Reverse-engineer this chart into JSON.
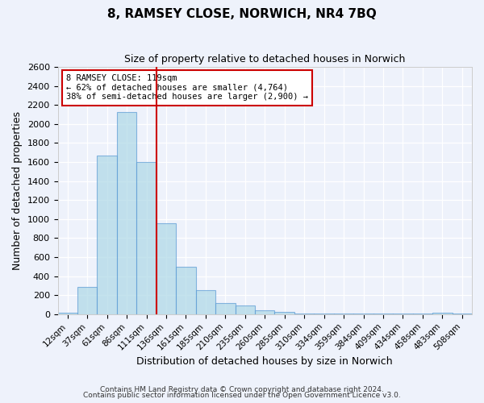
{
  "title": "8, RAMSEY CLOSE, NORWICH, NR4 7BQ",
  "subtitle": "Size of property relative to detached houses in Norwich",
  "xlabel": "Distribution of detached houses by size in Norwich",
  "ylabel": "Number of detached properties",
  "bar_labels": [
    "12sqm",
    "37sqm",
    "61sqm",
    "86sqm",
    "111sqm",
    "136sqm",
    "161sqm",
    "185sqm",
    "210sqm",
    "235sqm",
    "260sqm",
    "285sqm",
    "310sqm",
    "334sqm",
    "359sqm",
    "384sqm",
    "409sqm",
    "434sqm",
    "458sqm",
    "483sqm",
    "508sqm"
  ],
  "bar_values": [
    20,
    290,
    1670,
    2130,
    1600,
    960,
    500,
    250,
    120,
    95,
    40,
    25,
    10,
    10,
    10,
    5,
    5,
    5,
    5,
    20,
    5
  ],
  "bar_color": "#add8e6",
  "bar_edge_color": "#5b9bd5",
  "bar_alpha": 0.7,
  "vline_x": 4.5,
  "vline_color": "#cc0000",
  "annotation_title": "8 RAMSEY CLOSE: 119sqm",
  "annotation_line1": "← 62% of detached houses are smaller (4,764)",
  "annotation_line2": "38% of semi-detached houses are larger (2,900) →",
  "annotation_box_color": "#ffffff",
  "annotation_box_edge": "#cc0000",
  "ylim": [
    0,
    2600
  ],
  "yticks": [
    0,
    200,
    400,
    600,
    800,
    1000,
    1200,
    1400,
    1600,
    1800,
    2000,
    2200,
    2400,
    2600
  ],
  "footer1": "Contains HM Land Registry data © Crown copyright and database right 2024.",
  "footer2": "Contains public sector information licensed under the Open Government Licence v3.0.",
  "bg_color": "#eef2fb",
  "plot_bg_color": "#eef2fb",
  "grid_color": "#ffffff"
}
